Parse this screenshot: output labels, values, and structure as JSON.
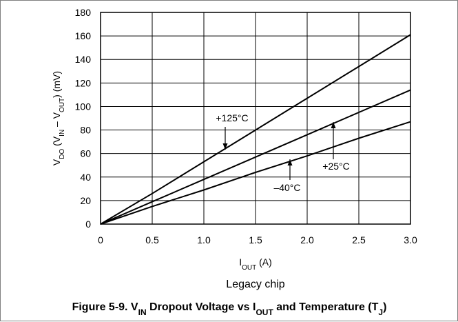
{
  "chart_data": {
    "type": "line",
    "title": "",
    "subtitle": "Legacy chip",
    "caption": {
      "parts": [
        {
          "t": "Figure 5-9. V"
        },
        {
          "t": "IN",
          "sub": true
        },
        {
          "t": " Dropout Voltage vs I"
        },
        {
          "t": "OUT",
          "sub": true
        },
        {
          "t": " and Temperature (T"
        },
        {
          "t": "J",
          "sub": true
        },
        {
          "t": ")"
        }
      ]
    },
    "xlabel": {
      "parts": [
        {
          "t": "I"
        },
        {
          "t": "OUT",
          "sub": true
        },
        {
          "t": " (A)"
        }
      ]
    },
    "ylabel": {
      "parts": [
        {
          "t": "V"
        },
        {
          "t": "DO",
          "sub": true
        },
        {
          "t": " (V"
        },
        {
          "t": "IN",
          "sub": true
        },
        {
          "t": " – V"
        },
        {
          "t": "OUT",
          "sub": true
        },
        {
          "t": ") (mV)"
        }
      ]
    },
    "xlim": [
      0,
      3.0
    ],
    "ylim": [
      0,
      180
    ],
    "xticks": [
      {
        "v": 0,
        "label": "0"
      },
      {
        "v": 0.5,
        "label": "0.5"
      },
      {
        "v": 1.0,
        "label": "1.0"
      },
      {
        "v": 1.5,
        "label": "1.5"
      },
      {
        "v": 2.0,
        "label": "2.0"
      },
      {
        "v": 2.5,
        "label": "2.5"
      },
      {
        "v": 3.0,
        "label": "3.0"
      }
    ],
    "yticks": [
      {
        "v": 0,
        "label": "0"
      },
      {
        "v": 20,
        "label": "20"
      },
      {
        "v": 40,
        "label": "40"
      },
      {
        "v": 60,
        "label": "60"
      },
      {
        "v": 80,
        "label": "80"
      },
      {
        "v": 100,
        "label": "100"
      },
      {
        "v": 120,
        "label": "120"
      },
      {
        "v": 140,
        "label": "140"
      },
      {
        "v": 160,
        "label": "160"
      },
      {
        "v": 180,
        "label": "180"
      }
    ],
    "grid": true,
    "series": [
      {
        "name": "+125°C",
        "x": [
          0,
          0.5,
          1.0,
          1.5,
          2.0,
          2.5,
          3.0
        ],
        "y": [
          0,
          26,
          53,
          80,
          107,
          134,
          161
        ]
      },
      {
        "name": "+25°C",
        "x": [
          0,
          0.5,
          1.0,
          1.5,
          2.0,
          2.5,
          3.0
        ],
        "y": [
          0,
          19,
          38,
          57,
          76,
          95,
          114
        ]
      },
      {
        "name": "–40°C",
        "x": [
          0,
          0.5,
          1.0,
          1.5,
          2.0,
          2.5,
          3.0
        ],
        "y": [
          0,
          15,
          29,
          44,
          58,
          73,
          87
        ]
      }
    ],
    "annotations": [
      {
        "text": "+125°C",
        "series": "+125°C",
        "at": [
          1.22,
          66
        ]
      },
      {
        "text": "+25°C",
        "series": "+25°C",
        "at": [
          2.25,
          86
        ]
      },
      {
        "text": "–40°C",
        "series": "–40°C",
        "at": [
          1.83,
          55
        ]
      }
    ]
  }
}
